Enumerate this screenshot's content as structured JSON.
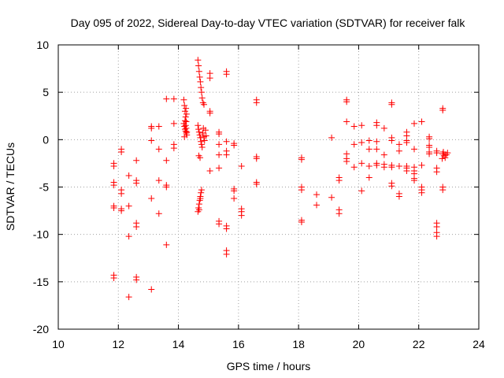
{
  "chart_data": {
    "type": "scatter",
    "title": "Day 095 of 2022, Sidereal Day-to-day VTEC variation (SDTVAR) for receiver falk",
    "xlabel": "GPS time / hours",
    "ylabel": "SDTVAR / TECUs",
    "xlim": [
      10,
      24
    ],
    "ylim": [
      -20,
      10
    ],
    "xticks": [
      "10",
      "12",
      "14",
      "16",
      "18",
      "20",
      "22",
      "24"
    ],
    "yticks": [
      "10",
      "5",
      "0",
      "-5",
      "-10",
      "-15",
      "-20"
    ],
    "grid": true,
    "marker": "plus",
    "series_color": "#ff0000",
    "series": [
      {
        "name": "SDTVAR",
        "points": [
          [
            11.85,
            -2.5
          ],
          [
            11.85,
            -2.8
          ],
          [
            11.85,
            -4.5
          ],
          [
            11.85,
            -4.8
          ],
          [
            11.85,
            -7.0
          ],
          [
            11.85,
            -7.2
          ],
          [
            11.85,
            -14.3
          ],
          [
            11.85,
            -14.6
          ],
          [
            12.1,
            -1.0
          ],
          [
            12.1,
            -1.3
          ],
          [
            12.1,
            -5.3
          ],
          [
            12.1,
            -5.7
          ],
          [
            12.1,
            -7.3
          ],
          [
            12.1,
            -7.5
          ],
          [
            12.35,
            -3.8
          ],
          [
            12.35,
            -7.0
          ],
          [
            12.35,
            -10.2
          ],
          [
            12.35,
            -16.6
          ],
          [
            12.6,
            -2.2
          ],
          [
            12.6,
            -4.3
          ],
          [
            12.6,
            -4.6
          ],
          [
            12.6,
            -8.8
          ],
          [
            12.6,
            -9.2
          ],
          [
            12.6,
            -14.5
          ],
          [
            12.6,
            -14.8
          ],
          [
            13.1,
            1.2
          ],
          [
            13.1,
            1.4
          ],
          [
            13.1,
            -0.1
          ],
          [
            13.1,
            -6.2
          ],
          [
            13.1,
            -15.8
          ],
          [
            13.35,
            1.4
          ],
          [
            13.35,
            -1.0
          ],
          [
            13.35,
            -4.3
          ],
          [
            13.35,
            -7.8
          ],
          [
            13.6,
            4.3
          ],
          [
            13.6,
            -2.2
          ],
          [
            13.6,
            -4.8
          ],
          [
            13.6,
            -5.0
          ],
          [
            13.6,
            -11.1
          ],
          [
            13.85,
            4.3
          ],
          [
            13.85,
            1.7
          ],
          [
            13.85,
            -0.5
          ],
          [
            13.85,
            -0.9
          ],
          [
            14.18,
            4.2
          ],
          [
            14.2,
            3.6
          ],
          [
            14.22,
            3.0
          ],
          [
            14.24,
            2.4
          ],
          [
            14.26,
            1.9
          ],
          [
            14.18,
            1.7
          ],
          [
            14.2,
            1.4
          ],
          [
            14.22,
            1.1
          ],
          [
            14.24,
            0.9
          ],
          [
            14.26,
            0.7
          ],
          [
            14.28,
            0.5
          ],
          [
            14.2,
            0.3
          ],
          [
            14.22,
            2.0
          ],
          [
            14.24,
            1.5
          ],
          [
            14.26,
            1.2
          ],
          [
            14.28,
            0.8
          ],
          [
            14.25,
            3.3
          ],
          [
            14.27,
            2.7
          ],
          [
            14.65,
            8.4
          ],
          [
            14.67,
            7.8
          ],
          [
            14.69,
            7.2
          ],
          [
            14.71,
            6.6
          ],
          [
            14.73,
            6.1
          ],
          [
            14.75,
            5.5
          ],
          [
            14.77,
            5.0
          ],
          [
            14.79,
            4.4
          ],
          [
            14.82,
            3.9
          ],
          [
            14.85,
            3.7
          ],
          [
            14.65,
            1.5
          ],
          [
            14.67,
            1.1
          ],
          [
            14.69,
            0.8
          ],
          [
            14.71,
            0.5
          ],
          [
            14.73,
            0.2
          ],
          [
            14.75,
            -0.2
          ],
          [
            14.77,
            -0.5
          ],
          [
            14.79,
            -0.8
          ],
          [
            14.81,
            0.7
          ],
          [
            14.83,
            1.2
          ],
          [
            14.85,
            0.3
          ],
          [
            14.87,
            -0.1
          ],
          [
            14.9,
            1.0
          ],
          [
            14.92,
            0.4
          ],
          [
            14.68,
            -1.7
          ],
          [
            14.72,
            -1.9
          ],
          [
            14.65,
            -7.6
          ],
          [
            14.67,
            -7.2
          ],
          [
            14.69,
            -6.8
          ],
          [
            14.71,
            -6.4
          ],
          [
            14.73,
            -6.0
          ],
          [
            14.75,
            -5.6
          ],
          [
            14.77,
            -5.3
          ],
          [
            14.69,
            -7.4
          ],
          [
            14.73,
            -6.2
          ],
          [
            15.05,
            7.0
          ],
          [
            15.05,
            6.5
          ],
          [
            15.05,
            3.0
          ],
          [
            15.05,
            2.8
          ],
          [
            15.05,
            -3.3
          ],
          [
            15.35,
            0.8
          ],
          [
            15.35,
            0.6
          ],
          [
            15.35,
            -0.5
          ],
          [
            15.35,
            -1.6
          ],
          [
            15.35,
            -3.0
          ],
          [
            15.35,
            -8.6
          ],
          [
            15.35,
            -8.9
          ],
          [
            15.6,
            7.2
          ],
          [
            15.6,
            6.9
          ],
          [
            15.6,
            -0.2
          ],
          [
            15.6,
            -1.2
          ],
          [
            15.6,
            -1.6
          ],
          [
            15.6,
            -9.1
          ],
          [
            15.6,
            -9.4
          ],
          [
            15.6,
            -11.7
          ],
          [
            15.6,
            -12.1
          ],
          [
            15.85,
            -0.4
          ],
          [
            15.85,
            -0.6
          ],
          [
            15.85,
            -5.2
          ],
          [
            15.85,
            -5.4
          ],
          [
            15.85,
            -6.2
          ],
          [
            16.1,
            -2.8
          ],
          [
            16.1,
            -7.3
          ],
          [
            16.1,
            -7.6
          ],
          [
            16.1,
            -8.0
          ],
          [
            16.6,
            4.2
          ],
          [
            16.6,
            3.9
          ],
          [
            16.6,
            -1.8
          ],
          [
            16.6,
            -2.0
          ],
          [
            16.6,
            -4.5
          ],
          [
            16.6,
            -4.7
          ],
          [
            18.1,
            -1.9
          ],
          [
            18.1,
            -2.1
          ],
          [
            18.1,
            -5.0
          ],
          [
            18.1,
            -5.3
          ],
          [
            18.1,
            -8.5
          ],
          [
            18.1,
            -8.7
          ],
          [
            18.6,
            -5.8
          ],
          [
            18.6,
            -6.9
          ],
          [
            19.1,
            0.2
          ],
          [
            19.1,
            -6.1
          ],
          [
            19.35,
            -4.0
          ],
          [
            19.35,
            -4.3
          ],
          [
            19.35,
            -7.4
          ],
          [
            19.35,
            -7.8
          ],
          [
            19.6,
            4.2
          ],
          [
            19.6,
            4.0
          ],
          [
            19.6,
            1.9
          ],
          [
            19.6,
            -1.5
          ],
          [
            19.6,
            -2.0
          ],
          [
            19.6,
            -2.3
          ],
          [
            19.85,
            1.4
          ],
          [
            19.85,
            -0.5
          ],
          [
            19.85,
            -2.9
          ],
          [
            20.1,
            1.5
          ],
          [
            20.1,
            -0.3
          ],
          [
            20.1,
            -2.5
          ],
          [
            20.1,
            -5.4
          ],
          [
            20.35,
            -0.1
          ],
          [
            20.35,
            -1.0
          ],
          [
            20.35,
            -2.8
          ],
          [
            20.35,
            -4.0
          ],
          [
            20.6,
            1.8
          ],
          [
            20.6,
            1.5
          ],
          [
            20.6,
            -0.2
          ],
          [
            20.6,
            -1.0
          ],
          [
            20.6,
            -2.5
          ],
          [
            20.6,
            -2.7
          ],
          [
            20.85,
            1.2
          ],
          [
            20.85,
            -1.6
          ],
          [
            20.85,
            -2.6
          ],
          [
            20.85,
            -2.9
          ],
          [
            21.1,
            3.9
          ],
          [
            21.1,
            3.7
          ],
          [
            21.1,
            0.2
          ],
          [
            21.1,
            -0.1
          ],
          [
            21.1,
            -2.7
          ],
          [
            21.1,
            -2.9
          ],
          [
            21.1,
            -4.6
          ],
          [
            21.1,
            -4.9
          ],
          [
            21.35,
            -0.5
          ],
          [
            21.35,
            -1.2
          ],
          [
            21.35,
            -2.8
          ],
          [
            21.35,
            -5.7
          ],
          [
            21.35,
            -6.0
          ],
          [
            21.6,
            0.8
          ],
          [
            21.6,
            0.4
          ],
          [
            21.6,
            -0.1
          ],
          [
            21.6,
            -0.3
          ],
          [
            21.6,
            -2.8
          ],
          [
            21.6,
            -3.0
          ],
          [
            21.6,
            -3.3
          ],
          [
            21.85,
            1.7
          ],
          [
            21.85,
            -1.0
          ],
          [
            21.85,
            -2.9
          ],
          [
            21.85,
            -3.3
          ],
          [
            21.85,
            -3.6
          ],
          [
            21.85,
            -4.1
          ],
          [
            21.85,
            -4.3
          ],
          [
            22.1,
            1.9
          ],
          [
            22.1,
            -2.7
          ],
          [
            22.1,
            -5.0
          ],
          [
            22.1,
            -5.3
          ],
          [
            22.1,
            -5.6
          ],
          [
            22.35,
            0.3
          ],
          [
            22.35,
            0.1
          ],
          [
            22.35,
            -0.6
          ],
          [
            22.35,
            -0.8
          ],
          [
            22.35,
            -1.3
          ],
          [
            22.35,
            -1.5
          ],
          [
            22.6,
            -1.2
          ],
          [
            22.6,
            -1.4
          ],
          [
            22.6,
            -3.0
          ],
          [
            22.6,
            -3.4
          ],
          [
            22.6,
            -8.8
          ],
          [
            22.6,
            -9.2
          ],
          [
            22.6,
            -9.8
          ],
          [
            22.6,
            -10.2
          ],
          [
            22.8,
            3.3
          ],
          [
            22.8,
            3.1
          ],
          [
            22.8,
            -5.0
          ],
          [
            22.8,
            -5.3
          ],
          [
            22.8,
            -1.5
          ],
          [
            22.84,
            -1.7
          ],
          [
            22.88,
            -1.9
          ],
          [
            22.92,
            -1.6
          ],
          [
            22.96,
            -1.4
          ],
          [
            22.78,
            -2.0
          ],
          [
            22.82,
            -1.3
          ]
        ]
      }
    ]
  }
}
